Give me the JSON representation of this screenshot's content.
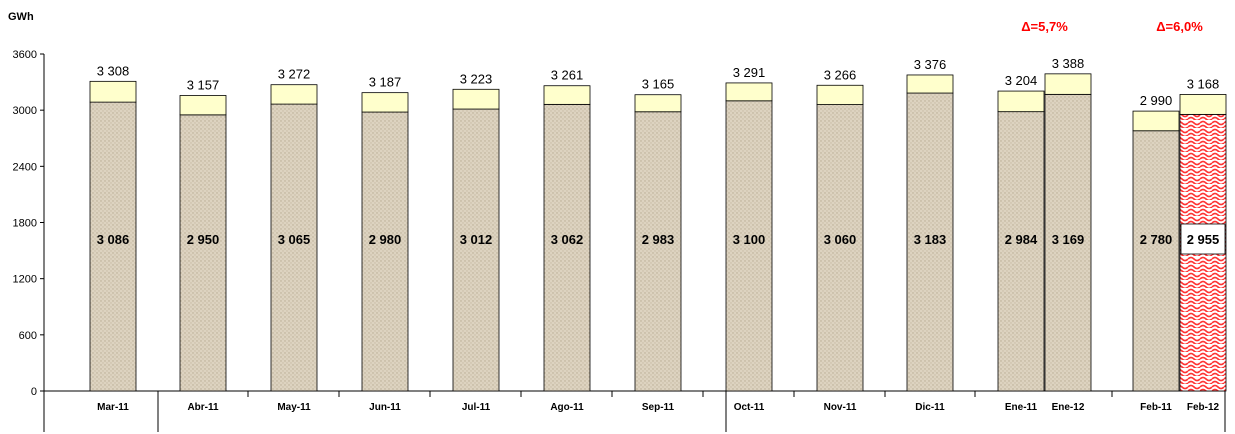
{
  "chart_data": {
    "type": "bar",
    "stacked": true,
    "ylabel": "GWh",
    "ylim": [
      0,
      3600
    ],
    "yticks": [
      0,
      600,
      1200,
      1800,
      2400,
      3000,
      3600
    ],
    "grid": false,
    "categories": [
      "Mar-11",
      "Abr-11",
      "May-11",
      "Jun-11",
      "Jul-11",
      "Ago-11",
      "Sep-11",
      "Oct-11",
      "Nov-11",
      "Dic-11",
      "Ene-11",
      "Ene-12",
      "Feb-11",
      "Feb-12"
    ],
    "values": [
      3086,
      2950,
      3065,
      2980,
      3012,
      3062,
      2983,
      3100,
      3060,
      3183,
      2984,
      3169,
      2780,
      2955
    ],
    "value_labels": [
      "3 086",
      "2 950",
      "3 065",
      "2 980",
      "3 012",
      "3 062",
      "2 983",
      "3 100",
      "3 060",
      "3 183",
      "2 984",
      "3 169",
      "2 780",
      "2 955"
    ],
    "totals": [
      3308,
      3157,
      3272,
      3187,
      3223,
      3261,
      3165,
      3291,
      3266,
      3376,
      3204,
      3388,
      2990,
      3168
    ],
    "total_labels": [
      "3 308",
      "3 157",
      "3 272",
      "3 187",
      "3 223",
      "3 261",
      "3 165",
      "3 291",
      "3 266",
      "3 376",
      "3 204",
      "3 388",
      "2 990",
      "3 168"
    ],
    "highlighted_category": "Feb-12",
    "annotations": [
      {
        "text": "Δ=5,7%",
        "categories": [
          "Ene-11",
          "Ene-12"
        ]
      },
      {
        "text": "Δ=6,0%",
        "categories": [
          "Feb-11",
          "Feb-12"
        ]
      }
    ],
    "colors": {
      "base": "#ddd3c0",
      "top": "#ffffcc",
      "highlight": "#ff3333",
      "delta_text": "#ff0000"
    }
  }
}
